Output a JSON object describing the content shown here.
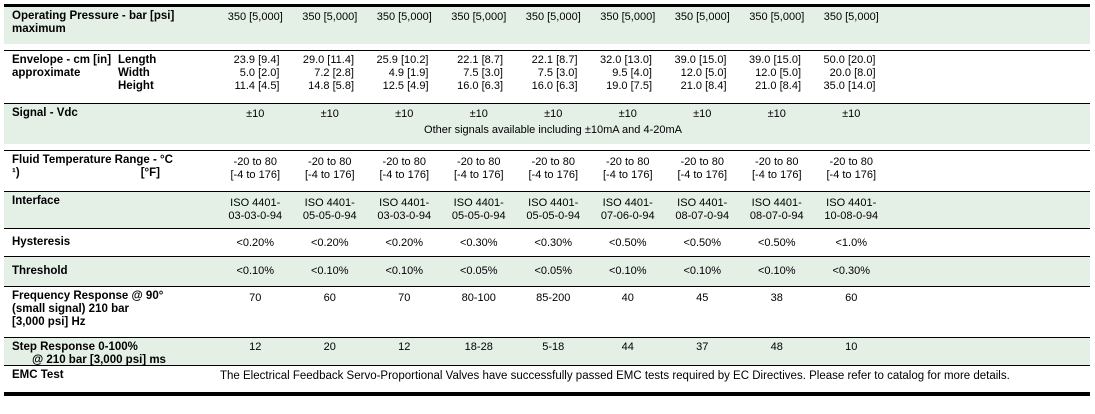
{
  "colors": {
    "row_highlight": "#e4efe6",
    "border": "#000000",
    "text": "#000000"
  },
  "rows": {
    "operating_pressure": {
      "label1": "Operating Pressure - bar [psi]",
      "label2": "maximum",
      "values": [
        "350 [5,000]",
        "350 [5,000]",
        "350 [5,000]",
        "350 [5,000]",
        "350 [5,000]",
        "350 [5,000]",
        "350 [5,000]",
        "350 [5,000]",
        "350 [5,000]"
      ]
    },
    "envelope": {
      "label1": "Envelope - cm [in]",
      "label2": "approximate",
      "sub": [
        "Length",
        "Width",
        "Height"
      ],
      "length": [
        "23.9 [9.4]",
        "29.0 [11.4]",
        "25.9 [10.2]",
        "22.1 [8.7]",
        "22.1 [8.7]",
        "32.0 [13.0]",
        "39.0 [15.0]",
        "39.0 [15.0]",
        "50.0 [20.0]"
      ],
      "width": [
        "5.0 [2.0]",
        "7.2 [2.8]",
        "4.9 [1.9]",
        "7.5 [3.0]",
        "7.5 [3.0]",
        "9.5 [4.0]",
        "12.0 [5.0]",
        "12.0 [5.0]",
        "20.0 [8.0]"
      ],
      "height": [
        "11.4 [4.5]",
        "14.8 [5.8]",
        "12.5 [4.9]",
        "16.0 [6.3]",
        "16.0 [6.3]",
        "19.0 [7.5]",
        "21.0 [8.4]",
        "21.0 [8.4]",
        "35.0 [14.0]"
      ]
    },
    "signal": {
      "label": "Signal - Vdc",
      "values": [
        "±10",
        "±10",
        "±10",
        "±10",
        "±10",
        "±10",
        "±10",
        "±10",
        "±10"
      ],
      "note": "Other signals available including ±10mA and 4-20mA"
    },
    "fluid_temp": {
      "label1": "Fluid Temperature Range - °C",
      "footnote": "¹)",
      "unit2": "[°F]",
      "line1": [
        "-20 to 80",
        "-20 to 80",
        "-20 to 80",
        "-20 to 80",
        "-20 to 80",
        "-20 to 80",
        "-20 to 80",
        "-20 to 80",
        "-20 to 80"
      ],
      "line2": [
        "[-4 to 176]",
        "[-4 to 176]",
        "[-4 to 176]",
        "[-4 to 176]",
        "[-4 to 176]",
        "[-4 to 176]",
        "[-4 to 176]",
        "[-4 to 176]",
        "[-4 to 176]"
      ]
    },
    "interface": {
      "label": "Interface",
      "line1": [
        "ISO 4401-",
        "ISO 4401-",
        "ISO 4401-",
        "ISO 4401-",
        "ISO 4401-",
        "ISO 4401-",
        "ISO 4401-",
        "ISO 4401-",
        "ISO 4401-"
      ],
      "line2": [
        "03-03-0-94",
        "05-05-0-94",
        "03-03-0-94",
        "05-05-0-94",
        "05-05-0-94",
        "07-06-0-94",
        "08-07-0-94",
        "08-07-0-94",
        "10-08-0-94"
      ]
    },
    "hysteresis": {
      "label": "Hysteresis",
      "values": [
        "<0.20%",
        "<0.20%",
        "<0.20%",
        "<0.30%",
        "<0.30%",
        "<0.50%",
        "<0.50%",
        "<0.50%",
        "<1.0%"
      ]
    },
    "threshold": {
      "label": "Threshold",
      "values": [
        "<0.10%",
        "<0.10%",
        "<0.10%",
        "<0.05%",
        "<0.05%",
        "<0.10%",
        "<0.10%",
        "<0.10%",
        "<0.30%"
      ]
    },
    "frequency_response": {
      "label1": "Frequency Response @ 90°",
      "label2": "(small signal) 210 bar",
      "label3": "[3,000 psi] Hz",
      "values": [
        "70",
        "60",
        "70",
        "80-100",
        "85-200",
        "40",
        "45",
        "38",
        "60"
      ]
    },
    "step_response": {
      "label1": "Step Response 0-100%",
      "label2": "@ 210 bar [3,000 psi] ms",
      "values": [
        "12",
        "20",
        "12",
        "18-28",
        "5-18",
        "44",
        "37",
        "48",
        "10"
      ]
    },
    "emc": {
      "label": "EMC Test",
      "text": "The Electrical Feedback Servo-Proportional Valves have successfully passed EMC tests required by EC Directives. Please refer to catalog for more details."
    }
  }
}
